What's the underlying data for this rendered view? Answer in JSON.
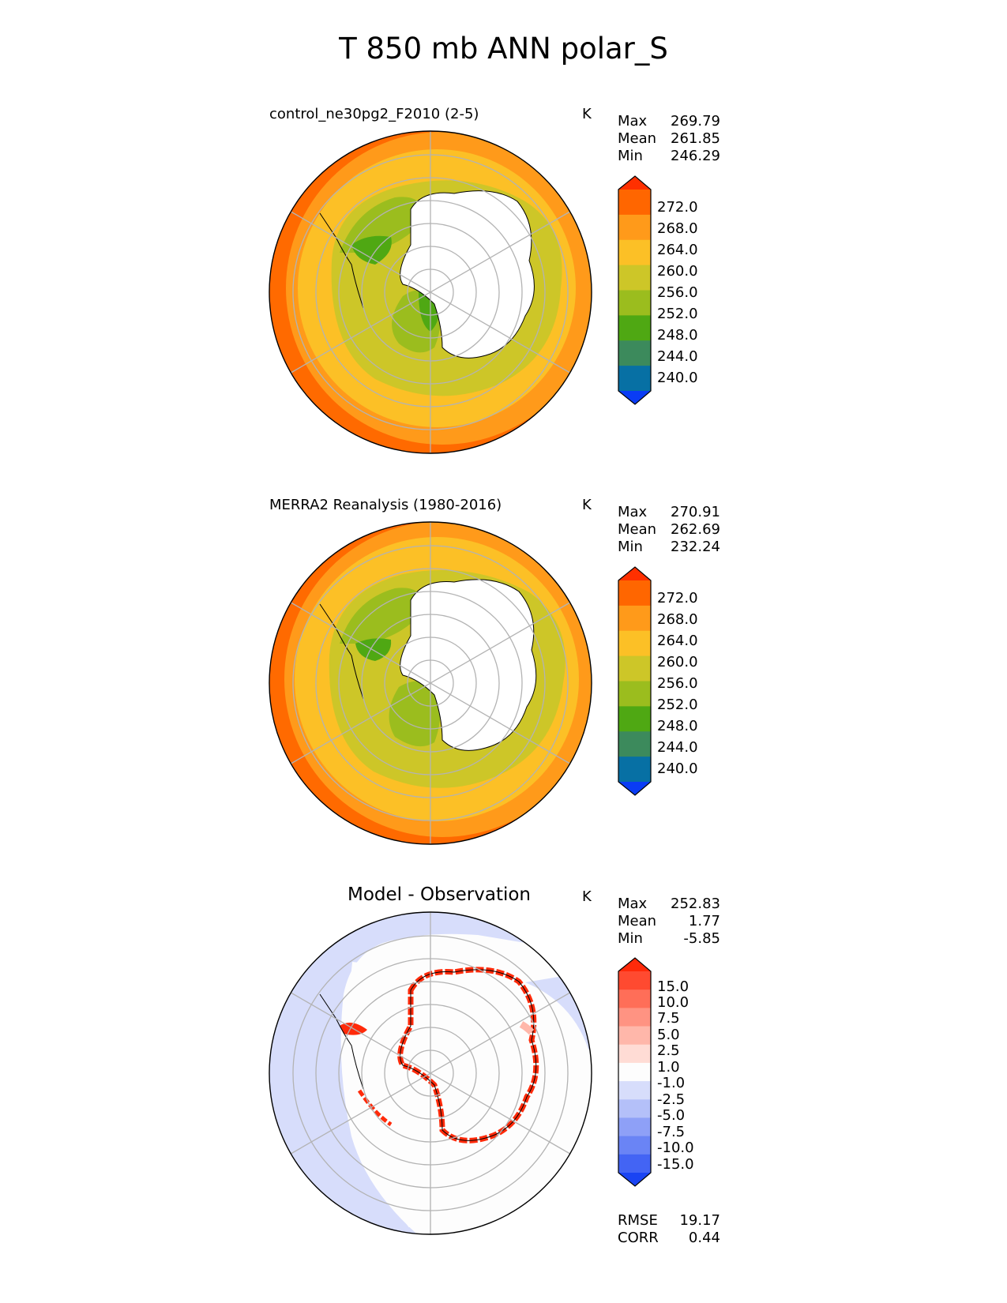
{
  "title": "T 850 mb ANN polar_S",
  "panels": [
    {
      "id": "test",
      "title": "control_ne30pg2_F2010 (2-5)",
      "units": "K",
      "stats": [
        {
          "label": "Max",
          "value": "269.79"
        },
        {
          "label": "Mean",
          "value": "261.85"
        },
        {
          "label": "Min",
          "value": "246.29"
        }
      ],
      "colorbar": {
        "ticks": [
          "272.0",
          "268.0",
          "264.0",
          "260.0",
          "256.0",
          "252.0",
          "248.0",
          "244.0",
          "240.0"
        ],
        "colors": [
          "#ff3000",
          "#ff6600",
          "#ff9a1a",
          "#fcc026",
          "#cdc628",
          "#9bbd1e",
          "#4fa813",
          "#3c8a5c",
          "#0770a4",
          "#0a3cf5"
        ]
      }
    },
    {
      "id": "reference",
      "title": "MERRA2 Reanalysis (1980-2016)",
      "units": "K",
      "stats": [
        {
          "label": "Max",
          "value": "270.91"
        },
        {
          "label": "Mean",
          "value": "262.69"
        },
        {
          "label": "Min",
          "value": "232.24"
        }
      ],
      "colorbar": {
        "ticks": [
          "272.0",
          "268.0",
          "264.0",
          "260.0",
          "256.0",
          "252.0",
          "248.0",
          "244.0",
          "240.0"
        ],
        "colors": [
          "#ff3000",
          "#ff6600",
          "#ff9a1a",
          "#fcc026",
          "#cdc628",
          "#9bbd1e",
          "#4fa813",
          "#3c8a5c",
          "#0770a4",
          "#0a3cf5"
        ]
      }
    },
    {
      "id": "diff",
      "title": "Model - Observation",
      "units": "K",
      "stats": [
        {
          "label": "Max",
          "value": "252.83"
        },
        {
          "label": "Mean",
          "value": "1.77"
        },
        {
          "label": "Min",
          "value": "-5.85"
        }
      ],
      "colorbar": {
        "ticks": [
          "15.0",
          "10.0",
          "7.5",
          "5.0",
          "2.5",
          "1.0",
          "-1.0",
          "-2.5",
          "-5.0",
          "-7.5",
          "-10.0",
          "-15.0"
        ],
        "colors": [
          "#ff2a0a",
          "#ff4a30",
          "#ff6e58",
          "#ff9382",
          "#ffb7aa",
          "#ffdcd5",
          "#fdfdfd",
          "#d7ddfb",
          "#b4c0f9",
          "#8ea0f7",
          "#6a84f5",
          "#4364f4",
          "#1a44f3"
        ]
      },
      "metrics": [
        {
          "label": "RMSE",
          "value": "19.17"
        },
        {
          "label": "CORR",
          "value": "0.44"
        }
      ]
    }
  ]
}
